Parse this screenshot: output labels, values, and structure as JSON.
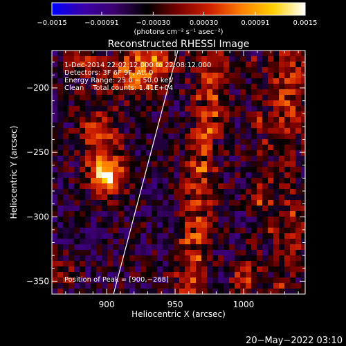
{
  "chart_data": {
    "type": "heatmap",
    "title": "Reconstructed RHESSI Image",
    "xlabel": "Heliocentric X (arcsec)",
    "ylabel": "Heliocentric Y (arcsec)",
    "xlim": [
      860,
      1045
    ],
    "ylim": [
      -360,
      -171
    ],
    "x_ticks": [
      900,
      950,
      1000
    ],
    "y_ticks": [
      -200,
      -250,
      -300,
      -350
    ],
    "x_tick_labels": [
      "900",
      "950",
      "1000"
    ],
    "y_tick_labels": [
      "−200",
      "−250",
      "−300",
      "−350"
    ],
    "colorbar": {
      "min": -0.0015,
      "max": 0.0015,
      "ticks": [
        -0.0015,
        -0.00091,
        -0.0003,
        0.0003,
        0.00091,
        0.0015
      ],
      "tick_labels": [
        "−0.0015",
        "−0.00091",
        "−0.00030",
        "0.00030",
        "0.00091",
        "0.0015"
      ],
      "unit_label": "(photons cm⁻² s⁻¹ asec⁻²)",
      "colors": [
        "#0000ff",
        "#3a00a8",
        "#3b006a",
        "#000000",
        "#7a0000",
        "#d02000",
        "#ff8000",
        "#ffd000",
        "#ffffff"
      ]
    },
    "annotations": {
      "time_range": "1-Dec-2014 22:02:12.000 to 22:08:12.000",
      "detectors": "Detectors: 3F 6F 9F, Att 0",
      "energy": "Energy Range: 25.0 − 50.0 keV",
      "method": "Clean    Total counts: 1.41E+04",
      "peak": "Position of Peak = [900,−268]"
    },
    "peak_position": [
      900,
      -268
    ],
    "features": [
      {
        "kind": "peak",
        "x": 900,
        "y": -268,
        "sx": 12,
        "sy": 14,
        "amp": 0.00165
      },
      {
        "kind": "blob",
        "x": 895,
        "y": -236,
        "sx": 14,
        "sy": 22,
        "amp": 0.00085
      },
      {
        "kind": "blob",
        "x": 922,
        "y": -192,
        "sx": 22,
        "sy": 14,
        "amp": 0.00095
      },
      {
        "kind": "blob",
        "x": 932,
        "y": -178,
        "sx": 18,
        "sy": 8,
        "amp": 0.0009
      },
      {
        "kind": "blob",
        "x": 882,
        "y": -182,
        "sx": 14,
        "sy": 10,
        "amp": 0.0006
      },
      {
        "kind": "blob",
        "x": 1032,
        "y": -200,
        "sx": 14,
        "sy": 50,
        "amp": 0.0007
      },
      {
        "kind": "blob",
        "x": 1036,
        "y": -310,
        "sx": 8,
        "sy": 30,
        "amp": 0.0007
      },
      {
        "kind": "blob",
        "x": 1002,
        "y": -345,
        "sx": 10,
        "sy": 16,
        "amp": 0.0008
      },
      {
        "kind": "blob",
        "x": 1010,
        "y": -285,
        "sx": 6,
        "sy": 10,
        "amp": 0.0008
      },
      {
        "kind": "blob",
        "x": 868,
        "y": -345,
        "sx": 8,
        "sy": 12,
        "amp": 0.0005
      }
    ],
    "band": {
      "x_at_top": 978,
      "x_at_bottom": 960,
      "width": 11,
      "amp": 0.001
    },
    "band2": {
      "x_at_top": 1005,
      "x_at_bottom": 1028,
      "width": 5,
      "amp": 0.0006
    },
    "limb": {
      "x_at_bottom": 905,
      "x_at_top": 952
    },
    "grid": false
  },
  "footer": {
    "timestamp": "20−May−2022 03:10"
  }
}
